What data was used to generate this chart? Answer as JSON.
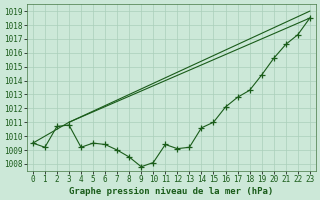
{
  "xlabel": "Graphe pression niveau de la mer (hPa)",
  "ylim": [
    1007.5,
    1019.5
  ],
  "xlim": [
    -0.5,
    23.5
  ],
  "yticks": [
    1008,
    1009,
    1010,
    1011,
    1012,
    1013,
    1014,
    1015,
    1016,
    1017,
    1018,
    1019
  ],
  "xticks": [
    0,
    1,
    2,
    3,
    4,
    5,
    6,
    7,
    8,
    9,
    10,
    11,
    12,
    13,
    14,
    15,
    16,
    17,
    18,
    19,
    20,
    21,
    22,
    23
  ],
  "bg_color": "#cce8d8",
  "grid_color": "#aacfba",
  "line_color": "#1a5c1a",
  "line1_x": [
    0,
    1,
    2,
    3,
    4,
    5,
    6,
    7,
    8,
    9,
    10,
    11,
    12,
    13,
    14,
    15,
    16,
    17,
    18,
    19,
    20,
    21,
    22,
    23
  ],
  "line1_y": [
    1009.5,
    1009.2,
    1010.7,
    1010.8,
    1009.2,
    1009.5,
    1009.4,
    1009.0,
    1008.5,
    1007.8,
    1008.1,
    1009.4,
    1009.1,
    1009.2,
    1010.6,
    1011.0,
    1012.1,
    1012.8,
    1013.3,
    1014.4,
    1015.6,
    1016.6,
    1017.3,
    1018.5
  ],
  "line2_x": [
    0,
    3,
    23
  ],
  "line2_y": [
    1009.5,
    1011.0,
    1018.5
  ],
  "line3_x": [
    3,
    23
  ],
  "line3_y": [
    1011.0,
    1019.0
  ],
  "marker_size": 4,
  "line_width": 0.8,
  "tick_fontsize": 5.5,
  "xlabel_fontsize": 6.5
}
